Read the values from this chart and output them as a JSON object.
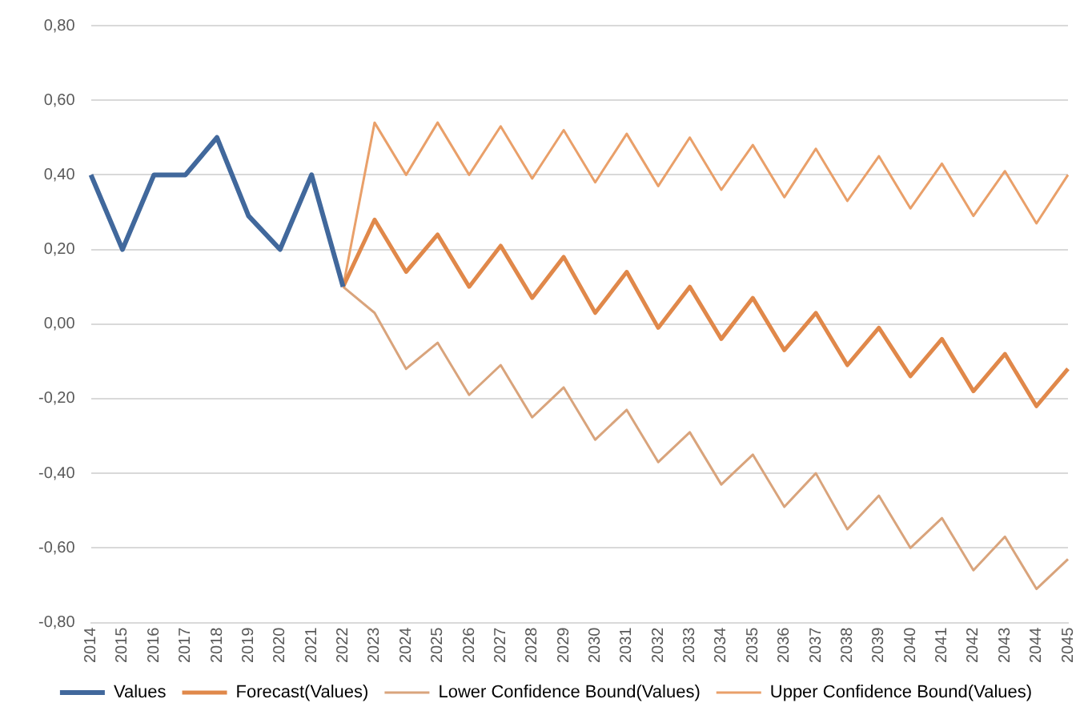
{
  "chart_data": {
    "type": "line",
    "categories": [
      "2014",
      "2015",
      "2016",
      "2017",
      "2018",
      "2019",
      "2020",
      "2021",
      "2022",
      "2023",
      "2024",
      "2025",
      "2026",
      "2027",
      "2028",
      "2029",
      "2030",
      "2031",
      "2032",
      "2033",
      "2034",
      "2035",
      "2036",
      "2037",
      "2038",
      "2039",
      "2040",
      "2041",
      "2042",
      "2043",
      "2044",
      "2045"
    ],
    "series": [
      {
        "name": "Values",
        "color": "#41689c",
        "values": [
          0.4,
          0.2,
          0.4,
          0.4,
          0.5,
          0.29,
          0.2,
          0.4,
          0.1,
          null,
          null,
          null,
          null,
          null,
          null,
          null,
          null,
          null,
          null,
          null,
          null,
          null,
          null,
          null,
          null,
          null,
          null,
          null,
          null,
          null,
          null,
          null
        ]
      },
      {
        "name": "Forecast(Values)",
        "color": "#e0884a",
        "values": [
          null,
          null,
          null,
          null,
          null,
          null,
          null,
          null,
          0.1,
          0.28,
          0.14,
          0.24,
          0.1,
          0.21,
          0.07,
          0.18,
          0.03,
          0.14,
          -0.01,
          0.1,
          -0.04,
          0.07,
          -0.07,
          0.03,
          -0.11,
          -0.01,
          -0.14,
          -0.04,
          -0.18,
          -0.08,
          -0.22,
          -0.12
        ]
      },
      {
        "name": "Lower Confidence Bound(Values)",
        "color": "#d9a47c",
        "values": [
          null,
          null,
          null,
          null,
          null,
          null,
          null,
          null,
          0.1,
          0.03,
          -0.12,
          -0.05,
          -0.19,
          -0.11,
          -0.25,
          -0.17,
          -0.31,
          -0.23,
          -0.37,
          -0.29,
          -0.43,
          -0.35,
          -0.49,
          -0.4,
          -0.55,
          -0.46,
          -0.6,
          -0.52,
          -0.66,
          -0.57,
          -0.71,
          -0.63
        ]
      },
      {
        "name": "Upper Confidence Bound(Values)",
        "color": "#e9a06a",
        "values": [
          null,
          null,
          null,
          null,
          null,
          null,
          null,
          null,
          0.1,
          0.54,
          0.4,
          0.54,
          0.4,
          0.53,
          0.39,
          0.52,
          0.38,
          0.51,
          0.37,
          0.5,
          0.36,
          0.48,
          0.34,
          0.47,
          0.33,
          0.45,
          0.31,
          0.43,
          0.29,
          0.41,
          0.27,
          0.4
        ]
      }
    ],
    "ylim": [
      -0.8,
      0.8
    ],
    "yticks": [
      {
        "value": -0.8,
        "label": "-0,80"
      },
      {
        "value": -0.6,
        "label": "-0,60"
      },
      {
        "value": -0.4,
        "label": "-0,40"
      },
      {
        "value": -0.2,
        "label": "-0,20"
      },
      {
        "value": 0,
        "label": "0,00"
      },
      {
        "value": 0.2,
        "label": "0,20"
      },
      {
        "value": 0.4,
        "label": "0,40"
      },
      {
        "value": 0.6,
        "label": "0,60"
      },
      {
        "value": 0.8,
        "label": "0,80"
      }
    ],
    "grid": "y",
    "legend": "bottom",
    "marker": "none",
    "line_style": "solid"
  }
}
